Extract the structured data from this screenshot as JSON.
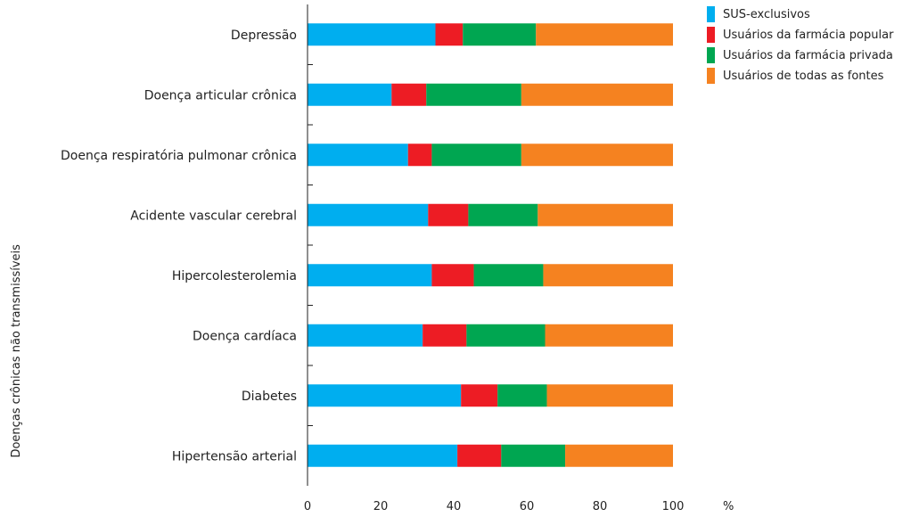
{
  "chart_data": {
    "type": "bar",
    "orientation": "horizontal",
    "stacked": true,
    "title": "",
    "xlabel": "",
    "x_unit": "%",
    "ylabel": "Doenças crônicas não transmissíveis",
    "xlim": [
      0,
      100
    ],
    "xticks": [
      0,
      20,
      40,
      60,
      80,
      100
    ],
    "grid": false,
    "legend_position": "top-right",
    "categories": [
      "Depressão",
      "Doença articular crônica",
      "Doença respiratória pulmonar crônica",
      "Acidente vascular cerebral",
      "Hipercolesterolemia",
      "Doença cardíaca",
      "Diabetes",
      "Hipertensão arterial"
    ],
    "series": [
      {
        "name": "SUS-exclusivos",
        "color": "#00aeef",
        "values": [
          35,
          23,
          27.5,
          33,
          34,
          31.5,
          42,
          41
        ]
      },
      {
        "name": "Usuários da farmácia popular",
        "color": "#ed1c24",
        "values": [
          7.5,
          9.5,
          6.5,
          11,
          11.5,
          12,
          10,
          12
        ]
      },
      {
        "name": "Usuários da farmácia privada",
        "color": "#00a651",
        "values": [
          20,
          26,
          24.5,
          19,
          19,
          21.5,
          13.5,
          17.5
        ]
      },
      {
        "name": "Usuários de todas as fontes",
        "color": "#f58220",
        "values": [
          37.5,
          41.5,
          41.5,
          37,
          35.5,
          35,
          34.5,
          29.5
        ]
      }
    ]
  }
}
